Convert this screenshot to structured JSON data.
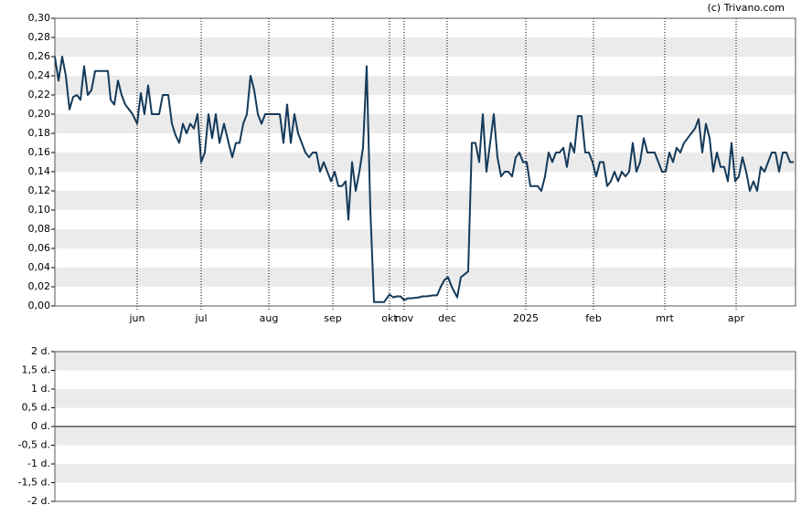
{
  "chart_data": [
    {
      "type": "line",
      "source": "(c) Trivano.com",
      "color": "#143a5a",
      "grid": "bands",
      "xlim": [
        0,
        202.5
      ],
      "xticks": [
        {
          "value": 22.5,
          "label": "jun"
        },
        {
          "value": 40,
          "label": "jul"
        },
        {
          "value": 58.5,
          "label": "aug"
        },
        {
          "value": 76,
          "label": "sep"
        },
        {
          "value": 91.5,
          "label": "okt"
        },
        {
          "value": 95.5,
          "label": "nov"
        },
        {
          "value": 107.25,
          "label": "dec"
        },
        {
          "value": 128.75,
          "label": "2025"
        },
        {
          "value": 147.25,
          "label": "feb"
        },
        {
          "value": 166.75,
          "label": "mrt"
        },
        {
          "value": 186.25,
          "label": "apr"
        }
      ],
      "ylim": [
        0,
        0.3
      ],
      "yticks": [
        {
          "value": 0,
          "label": "0,00"
        },
        {
          "value": 0.02,
          "label": "0,02"
        },
        {
          "value": 0.04,
          "label": "0,04"
        },
        {
          "value": 0.06,
          "label": "0,06"
        },
        {
          "value": 0.08,
          "label": "0,08"
        },
        {
          "value": 0.1,
          "label": "0,10"
        },
        {
          "value": 0.12,
          "label": "0,12"
        },
        {
          "value": 0.14,
          "label": "0,14"
        },
        {
          "value": 0.16,
          "label": "0,16"
        },
        {
          "value": 0.18,
          "label": "0,18"
        },
        {
          "value": 0.2,
          "label": "0,20"
        },
        {
          "value": 0.22,
          "label": "0,22"
        },
        {
          "value": 0.24,
          "label": "0,24"
        },
        {
          "value": 0.26,
          "label": "0,26"
        },
        {
          "value": 0.28,
          "label": "0,28"
        },
        {
          "value": 0.3,
          "label": "0,30"
        }
      ],
      "x": [
        0,
        1,
        2,
        3,
        4,
        5,
        6,
        7,
        8,
        9,
        10,
        11,
        14.5,
        15.25,
        16.25,
        17.25,
        18.25,
        19.25,
        21.25,
        22.5,
        23.5,
        24.5,
        25.5,
        26.5,
        28.5,
        29.5,
        31,
        32,
        33,
        34,
        35,
        36,
        37,
        38,
        39,
        40,
        41,
        42,
        43,
        44,
        45,
        46.25,
        47.5,
        48.5,
        49.5,
        50.5,
        51.5,
        52.5,
        53.5,
        54.5,
        55.5,
        56.5,
        57.5,
        61.5,
        62.5,
        63.5,
        64.5,
        65.5,
        66.5,
        67.5,
        68.5,
        69.5,
        70.5,
        71.5,
        72.5,
        73.5,
        74.5,
        75.5,
        76.5,
        77.5,
        78.5,
        79.5,
        80.25,
        81.25,
        82.25,
        83.25,
        84.25,
        85.25,
        86.25,
        87.25,
        90,
        91.5,
        92.5,
        93.5,
        94.5,
        95.5,
        96.5,
        97.5,
        99.5,
        100.5,
        101.5,
        103.5,
        104.5,
        105.5,
        106.5,
        107.5,
        108.5,
        110,
        111,
        112,
        113,
        114,
        115,
        116,
        117,
        118,
        119,
        120,
        121,
        122,
        123,
        124,
        125,
        126,
        127,
        128,
        129,
        130,
        132,
        133,
        134,
        135,
        136,
        137,
        138,
        139,
        140,
        141,
        142,
        143,
        144,
        145,
        146,
        147,
        148,
        149,
        150,
        151,
        152,
        153,
        154,
        155,
        156,
        157,
        158,
        159,
        160,
        161,
        162,
        163,
        164,
        165,
        166,
        167,
        168,
        169,
        170,
        171,
        172,
        173,
        174,
        175,
        176,
        177,
        178,
        179,
        180,
        181,
        182,
        183,
        184,
        185,
        186,
        187,
        188,
        189,
        190,
        191,
        192,
        193,
        194,
        195,
        196,
        197,
        198,
        199,
        200,
        201,
        202
      ],
      "values": [
        0.26,
        0.235,
        0.26,
        0.24,
        0.205,
        0.218,
        0.22,
        0.215,
        0.25,
        0.22,
        0.225,
        0.245,
        0.245,
        0.215,
        0.21,
        0.235,
        0.22,
        0.21,
        0.2,
        0.19,
        0.222,
        0.2,
        0.23,
        0.2,
        0.2,
        0.22,
        0.22,
        0.19,
        0.178,
        0.17,
        0.19,
        0.18,
        0.19,
        0.185,
        0.2,
        0.15,
        0.16,
        0.2,
        0.175,
        0.2,
        0.17,
        0.19,
        0.17,
        0.155,
        0.17,
        0.17,
        0.19,
        0.2,
        0.24,
        0.225,
        0.2,
        0.19,
        0.2,
        0.2,
        0.17,
        0.21,
        0.17,
        0.2,
        0.18,
        0.17,
        0.16,
        0.155,
        0.16,
        0.16,
        0.14,
        0.15,
        0.14,
        0.13,
        0.14,
        0.125,
        0.125,
        0.13,
        0.09,
        0.15,
        0.12,
        0.14,
        0.165,
        0.25,
        0.1,
        0.004,
        0.004,
        0.012,
        0.009,
        0.01,
        0.01,
        0.006,
        0.008,
        0.008,
        0.009,
        0.01,
        0.01,
        0.011,
        0.011,
        0.02,
        0.027,
        0.03,
        0.02,
        0.009,
        0.03,
        0.033,
        0.036,
        0.17,
        0.17,
        0.15,
        0.2,
        0.14,
        0.17,
        0.2,
        0.155,
        0.135,
        0.14,
        0.14,
        0.135,
        0.155,
        0.16,
        0.15,
        0.15,
        0.125,
        0.125,
        0.12,
        0.135,
        0.16,
        0.15,
        0.16,
        0.16,
        0.165,
        0.145,
        0.17,
        0.16,
        0.198,
        0.198,
        0.16,
        0.16,
        0.15,
        0.135,
        0.15,
        0.15,
        0.125,
        0.13,
        0.14,
        0.13,
        0.14,
        0.135,
        0.14,
        0.17,
        0.14,
        0.15,
        0.175,
        0.16,
        0.16,
        0.16,
        0.15,
        0.14,
        0.14,
        0.16,
        0.15,
        0.165,
        0.16,
        0.17,
        0.175,
        0.18,
        0.185,
        0.195,
        0.16,
        0.19,
        0.175,
        0.14,
        0.16,
        0.145,
        0.145,
        0.13,
        0.17,
        0.13,
        0.135,
        0.155,
        0.14,
        0.12,
        0.13,
        0.12,
        0.145,
        0.14,
        0.15,
        0.16,
        0.16,
        0.14,
        0.16,
        0.16,
        0.15,
        0.15
      ]
    },
    {
      "type": "bar",
      "grid": "bands",
      "ylim": [
        -2,
        2
      ],
      "yticks": [
        {
          "value": -2,
          "label": "-2 d."
        },
        {
          "value": -1.5,
          "label": "-1,5 d."
        },
        {
          "value": -1,
          "label": "-1 d."
        },
        {
          "value": -0.5,
          "label": "-0,5 d."
        },
        {
          "value": 0,
          "label": "0 d."
        },
        {
          "value": 0.5,
          "label": "0,5 d."
        },
        {
          "value": 1,
          "label": "1 d."
        },
        {
          "value": 1.5,
          "label": "1,5 d."
        },
        {
          "value": 2,
          "label": "2 d."
        }
      ]
    }
  ]
}
